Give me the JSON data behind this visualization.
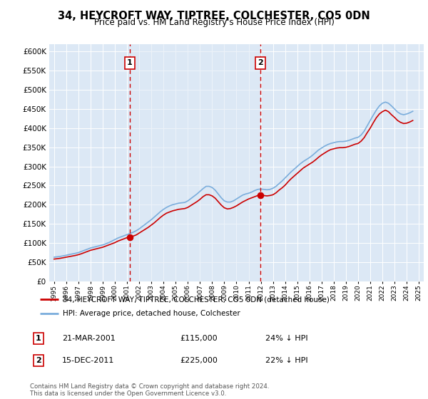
{
  "title": "34, HEYCROFT WAY, TIPTREE, COLCHESTER, CO5 0DN",
  "subtitle": "Price paid vs. HM Land Registry's House Price Index (HPI)",
  "ylim": [
    0,
    620000
  ],
  "yticks": [
    0,
    50000,
    100000,
    150000,
    200000,
    250000,
    300000,
    350000,
    400000,
    450000,
    500000,
    550000,
    600000
  ],
  "background_color": "#dce8f5",
  "hpi_color": "#7aaddc",
  "property_color": "#cc0000",
  "vline_color": "#cc0000",
  "legend_label_property": "34, HEYCROFT WAY, TIPTREE, COLCHESTER, CO5 0DN (detached house)",
  "legend_label_hpi": "HPI: Average price, detached house, Colchester",
  "sale1_year": 2001.22,
  "sale1_price": 115000,
  "sale2_year": 2011.96,
  "sale2_price": 225000,
  "footnote": "Contains HM Land Registry data © Crown copyright and database right 2024.\nThis data is licensed under the Open Government Licence v3.0.",
  "hpi_x": [
    1995.0,
    1995.25,
    1995.5,
    1995.75,
    1996.0,
    1996.25,
    1996.5,
    1996.75,
    1997.0,
    1997.25,
    1997.5,
    1997.75,
    1998.0,
    1998.25,
    1998.5,
    1998.75,
    1999.0,
    1999.25,
    1999.5,
    1999.75,
    2000.0,
    2000.25,
    2000.5,
    2000.75,
    2001.0,
    2001.25,
    2001.5,
    2001.75,
    2002.0,
    2002.25,
    2002.5,
    2002.75,
    2003.0,
    2003.25,
    2003.5,
    2003.75,
    2004.0,
    2004.25,
    2004.5,
    2004.75,
    2005.0,
    2005.25,
    2005.5,
    2005.75,
    2006.0,
    2006.25,
    2006.5,
    2006.75,
    2007.0,
    2007.25,
    2007.5,
    2007.75,
    2008.0,
    2008.25,
    2008.5,
    2008.75,
    2009.0,
    2009.25,
    2009.5,
    2009.75,
    2010.0,
    2010.25,
    2010.5,
    2010.75,
    2011.0,
    2011.25,
    2011.5,
    2011.75,
    2012.0,
    2012.25,
    2012.5,
    2012.75,
    2013.0,
    2013.25,
    2013.5,
    2013.75,
    2014.0,
    2014.25,
    2014.5,
    2014.75,
    2015.0,
    2015.25,
    2015.5,
    2015.75,
    2016.0,
    2016.25,
    2016.5,
    2016.75,
    2017.0,
    2017.25,
    2017.5,
    2017.75,
    2018.0,
    2018.25,
    2018.5,
    2018.75,
    2019.0,
    2019.25,
    2019.5,
    2019.75,
    2020.0,
    2020.25,
    2020.5,
    2020.75,
    2021.0,
    2021.25,
    2021.5,
    2021.75,
    2022.0,
    2022.25,
    2022.5,
    2022.75,
    2023.0,
    2023.25,
    2023.5,
    2023.75,
    2024.0,
    2024.25,
    2024.5
  ],
  "hpi_y": [
    63000,
    64000,
    65000,
    66500,
    68000,
    70000,
    71500,
    73000,
    75000,
    78000,
    81000,
    84000,
    87000,
    89000,
    91000,
    93000,
    95000,
    98000,
    101000,
    105000,
    109000,
    113000,
    116000,
    119000,
    122000,
    125000,
    128000,
    132000,
    137000,
    143000,
    149000,
    155000,
    161000,
    168000,
    175000,
    182000,
    188000,
    193000,
    197000,
    200000,
    202000,
    204000,
    205000,
    206000,
    210000,
    216000,
    222000,
    228000,
    235000,
    242000,
    248000,
    248000,
    245000,
    238000,
    228000,
    218000,
    210000,
    207000,
    207000,
    210000,
    215000,
    220000,
    225000,
    228000,
    230000,
    233000,
    237000,
    240000,
    241000,
    240000,
    239000,
    240000,
    243000,
    248000,
    255000,
    262000,
    270000,
    278000,
    286000,
    293000,
    300000,
    307000,
    313000,
    318000,
    323000,
    329000,
    336000,
    343000,
    348000,
    353000,
    357000,
    360000,
    362000,
    364000,
    365000,
    365000,
    366000,
    368000,
    371000,
    374000,
    376000,
    382000,
    392000,
    406000,
    420000,
    434000,
    447000,
    458000,
    465000,
    468000,
    465000,
    458000,
    450000,
    442000,
    437000,
    435000,
    437000,
    440000,
    444000
  ],
  "prop_x": [
    1995.0,
    1995.25,
    1995.5,
    1995.75,
    1996.0,
    1996.25,
    1996.5,
    1996.75,
    1997.0,
    1997.25,
    1997.5,
    1997.75,
    1998.0,
    1998.25,
    1998.5,
    1998.75,
    1999.0,
    1999.25,
    1999.5,
    1999.75,
    2000.0,
    2000.25,
    2000.5,
    2000.75,
    2001.0,
    2001.25,
    2001.5,
    2001.75,
    2002.0,
    2002.25,
    2002.5,
    2002.75,
    2003.0,
    2003.25,
    2003.5,
    2003.75,
    2004.0,
    2004.25,
    2004.5,
    2004.75,
    2005.0,
    2005.25,
    2005.5,
    2005.75,
    2006.0,
    2006.25,
    2006.5,
    2006.75,
    2007.0,
    2007.25,
    2007.5,
    2007.75,
    2008.0,
    2008.25,
    2008.5,
    2008.75,
    2009.0,
    2009.25,
    2009.5,
    2009.75,
    2010.0,
    2010.25,
    2010.5,
    2010.75,
    2011.0,
    2011.25,
    2011.5,
    2011.75,
    2012.0,
    2012.25,
    2012.5,
    2012.75,
    2013.0,
    2013.25,
    2013.5,
    2013.75,
    2014.0,
    2014.25,
    2014.5,
    2014.75,
    2015.0,
    2015.25,
    2015.5,
    2015.75,
    2016.0,
    2016.25,
    2016.5,
    2016.75,
    2017.0,
    2017.25,
    2017.5,
    2017.75,
    2018.0,
    2018.25,
    2018.5,
    2018.75,
    2019.0,
    2019.25,
    2019.5,
    2019.75,
    2020.0,
    2020.25,
    2020.5,
    2020.75,
    2021.0,
    2021.25,
    2021.5,
    2021.75,
    2022.0,
    2022.25,
    2022.5,
    2022.75,
    2023.0,
    2023.25,
    2023.5,
    2023.75,
    2024.0,
    2024.25,
    2024.5
  ],
  "prop_y": [
    58000,
    59000,
    60000,
    61500,
    63000,
    64500,
    66000,
    67500,
    69500,
    72000,
    75000,
    78000,
    81000,
    83000,
    85000,
    87000,
    89000,
    92000,
    95000,
    98000,
    101000,
    105000,
    108000,
    111000,
    114000,
    116000,
    118000,
    121000,
    126000,
    131000,
    136000,
    141000,
    147000,
    153000,
    160000,
    167000,
    173000,
    178000,
    181000,
    184000,
    186000,
    188000,
    189000,
    190000,
    193000,
    198000,
    203000,
    208000,
    214000,
    221000,
    226000,
    226000,
    223000,
    217000,
    208000,
    199000,
    192000,
    189000,
    190000,
    193000,
    197000,
    202000,
    207000,
    211000,
    215000,
    218000,
    221000,
    224000,
    225000,
    224000,
    223000,
    224000,
    226000,
    231000,
    238000,
    244000,
    251000,
    260000,
    268000,
    275000,
    282000,
    289000,
    296000,
    301000,
    306000,
    311000,
    317000,
    324000,
    330000,
    335000,
    340000,
    344000,
    346000,
    348000,
    349000,
    349000,
    350000,
    352000,
    355000,
    358000,
    360000,
    366000,
    375000,
    388000,
    400000,
    414000,
    427000,
    437000,
    443000,
    447000,
    443000,
    435000,
    428000,
    420000,
    415000,
    412000,
    413000,
    416000,
    420000
  ]
}
